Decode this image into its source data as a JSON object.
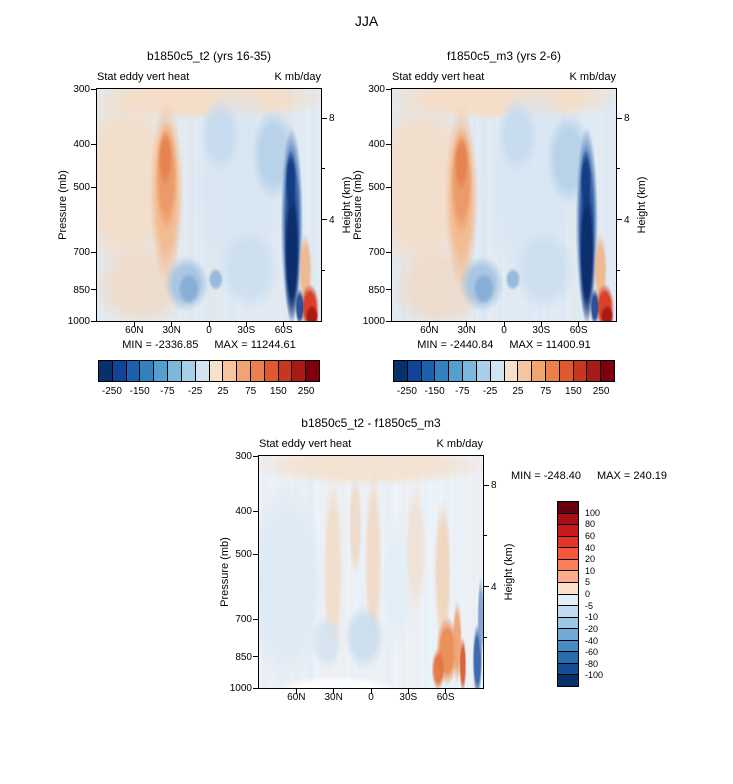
{
  "main_title": "JJA",
  "chart_data": [
    {
      "type": "heatmap",
      "title": "b1850c5_t2 (yrs 16-35)",
      "field_label": "Stat eddy vert heat",
      "units": "K mb/day",
      "min_label": "MIN = -2336.85",
      "max_label": "MAX = 11244.61",
      "pressure_axis": {
        "label": "Pressure (mb)",
        "ticks": [
          300,
          400,
          500,
          700,
          850,
          1000
        ]
      },
      "height_axis": {
        "label": "Height (km)",
        "ticks": [
          8,
          4
        ],
        "minor": [
          6,
          2
        ]
      },
      "lat_ticks": [
        "60N",
        "30N",
        "0",
        "30S",
        "60S"
      ],
      "colorbar": {
        "orientation": "horizontal",
        "labels": [
          "-250",
          "-150",
          "-75",
          "-25",
          "25",
          "75",
          "150",
          "250"
        ],
        "colors": [
          "#08306b",
          "#0f4499",
          "#1c60ae",
          "#3381bf",
          "#539fce",
          "#7db8dc",
          "#a8cfe8",
          "#d2e3f0",
          "#f8e0cb",
          "#f6c49e",
          "#f2a372",
          "#ec7f4c",
          "#e0582f",
          "#c93620",
          "#a81a17",
          "#7f000d"
        ]
      },
      "field": {
        "base": "#e2ecf6",
        "streak_warm": "#f3cda8",
        "streak_cool": "#bcd4e9",
        "seed": 1,
        "features": [
          {
            "x": 0.5,
            "y": 0.04,
            "rx": 0.55,
            "ry": 0.1,
            "c": "#f6dcc4",
            "a": 0.9
          },
          {
            "x": 0.14,
            "y": 0.4,
            "rx": 0.26,
            "ry": 0.42,
            "c": "#f5dcc5",
            "a": 0.85
          },
          {
            "x": 0.2,
            "y": 0.85,
            "rx": 0.22,
            "ry": 0.18,
            "c": "#f2d7bf",
            "a": 0.7
          },
          {
            "x": 0.31,
            "y": 0.45,
            "rx": 0.075,
            "ry": 0.4,
            "c": "#f3bb90",
            "a": 0.95
          },
          {
            "x": 0.31,
            "y": 0.38,
            "rx": 0.05,
            "ry": 0.24,
            "c": "#ec9868",
            "a": 0.95
          },
          {
            "x": 0.305,
            "y": 0.3,
            "rx": 0.032,
            "ry": 0.12,
            "c": "#e4824f",
            "a": 0.9
          },
          {
            "x": 0.63,
            "y": 0.42,
            "rx": 0.22,
            "ry": 0.46,
            "c": "#d8e6f3",
            "a": 0.9
          },
          {
            "x": 0.55,
            "y": 0.2,
            "rx": 0.09,
            "ry": 0.16,
            "c": "#c5daee",
            "a": 0.85
          },
          {
            "x": 0.79,
            "y": 0.28,
            "rx": 0.1,
            "ry": 0.2,
            "c": "#b2cee7",
            "a": 0.85
          },
          {
            "x": 0.68,
            "y": 0.78,
            "rx": 0.14,
            "ry": 0.18,
            "c": "#cadeef",
            "a": 0.8
          },
          {
            "x": 0.4,
            "y": 0.84,
            "rx": 0.1,
            "ry": 0.12,
            "c": "#a3c3e2",
            "a": 0.9
          },
          {
            "x": 0.41,
            "y": 0.86,
            "rx": 0.05,
            "ry": 0.07,
            "c": "#82abd5",
            "a": 0.9
          },
          {
            "x": 0.53,
            "y": 0.82,
            "rx": 0.035,
            "ry": 0.05,
            "c": "#8fb5da",
            "a": 0.9
          },
          {
            "x": 0.87,
            "y": 0.58,
            "rx": 0.05,
            "ry": 0.42,
            "c": "#2a5aa5",
            "a": 0.9
          },
          {
            "x": 0.87,
            "y": 0.7,
            "rx": 0.035,
            "ry": 0.32,
            "c": "#0c2d6e",
            "a": 1
          },
          {
            "x": 0.865,
            "y": 0.4,
            "rx": 0.025,
            "ry": 0.14,
            "c": "#123a82",
            "a": 0.9
          },
          {
            "x": 0.93,
            "y": 0.78,
            "rx": 0.03,
            "ry": 0.16,
            "c": "#f0b183",
            "a": 0.85
          },
          {
            "x": 0.95,
            "y": 0.94,
            "rx": 0.042,
            "ry": 0.1,
            "c": "#d8402a",
            "a": 1
          },
          {
            "x": 0.96,
            "y": 0.98,
            "rx": 0.03,
            "ry": 0.05,
            "c": "#a81a12",
            "a": 1
          },
          {
            "x": 0.905,
            "y": 0.94,
            "rx": 0.02,
            "ry": 0.08,
            "c": "#1a3f8c",
            "a": 0.9
          }
        ]
      }
    },
    {
      "type": "heatmap",
      "title": "f1850c5_m3 (yrs 2-6)",
      "field_label": "Stat eddy vert heat",
      "units": "K mb/day",
      "min_label": "MIN = -2440.84",
      "max_label": "MAX = 11400.91",
      "pressure_axis": {
        "label": "Pressure (mb)",
        "ticks": [
          300,
          400,
          500,
          700,
          850,
          1000
        ]
      },
      "height_axis": {
        "label": "Height (km)",
        "ticks": [
          8,
          4
        ],
        "minor": [
          6,
          2
        ]
      },
      "lat_ticks": [
        "60N",
        "30N",
        "0",
        "30S",
        "60S"
      ],
      "colorbar": {
        "orientation": "horizontal",
        "labels": [
          "-250",
          "-150",
          "-75",
          "-25",
          "25",
          "75",
          "150",
          "250"
        ],
        "colors": [
          "#08306b",
          "#0f4499",
          "#1c60ae",
          "#3381bf",
          "#539fce",
          "#7db8dc",
          "#a8cfe8",
          "#d2e3f0",
          "#f8e0cb",
          "#f6c49e",
          "#f2a372",
          "#ec7f4c",
          "#e0582f",
          "#c93620",
          "#a81a17",
          "#7f000d"
        ]
      },
      "field": {
        "base": "#e2ecf6",
        "streak_warm": "#f3cda8",
        "streak_cool": "#bcd4e9",
        "seed": 2,
        "features": [
          {
            "x": 0.5,
            "y": 0.04,
            "rx": 0.55,
            "ry": 0.1,
            "c": "#f6dcc4",
            "a": 0.9
          },
          {
            "x": 0.14,
            "y": 0.42,
            "rx": 0.26,
            "ry": 0.42,
            "c": "#f5dcc5",
            "a": 0.85
          },
          {
            "x": 0.21,
            "y": 0.86,
            "rx": 0.22,
            "ry": 0.18,
            "c": "#f2d7bf",
            "a": 0.7
          },
          {
            "x": 0.31,
            "y": 0.47,
            "rx": 0.075,
            "ry": 0.4,
            "c": "#f3bb90",
            "a": 0.95
          },
          {
            "x": 0.31,
            "y": 0.4,
            "rx": 0.05,
            "ry": 0.24,
            "c": "#ec9868",
            "a": 0.95
          },
          {
            "x": 0.31,
            "y": 0.32,
            "rx": 0.032,
            "ry": 0.12,
            "c": "#e4824f",
            "a": 0.9
          },
          {
            "x": 0.63,
            "y": 0.42,
            "rx": 0.22,
            "ry": 0.46,
            "c": "#d8e6f3",
            "a": 0.9
          },
          {
            "x": 0.56,
            "y": 0.2,
            "rx": 0.09,
            "ry": 0.16,
            "c": "#c5daee",
            "a": 0.85
          },
          {
            "x": 0.79,
            "y": 0.3,
            "rx": 0.1,
            "ry": 0.2,
            "c": "#b2cee7",
            "a": 0.85
          },
          {
            "x": 0.68,
            "y": 0.78,
            "rx": 0.14,
            "ry": 0.18,
            "c": "#cadeef",
            "a": 0.8
          },
          {
            "x": 0.4,
            "y": 0.84,
            "rx": 0.1,
            "ry": 0.12,
            "c": "#a3c3e2",
            "a": 0.9
          },
          {
            "x": 0.41,
            "y": 0.86,
            "rx": 0.05,
            "ry": 0.07,
            "c": "#82abd5",
            "a": 0.9
          },
          {
            "x": 0.54,
            "y": 0.82,
            "rx": 0.035,
            "ry": 0.05,
            "c": "#8fb5da",
            "a": 0.9
          },
          {
            "x": 0.87,
            "y": 0.58,
            "rx": 0.05,
            "ry": 0.42,
            "c": "#2a5aa5",
            "a": 0.9
          },
          {
            "x": 0.87,
            "y": 0.7,
            "rx": 0.035,
            "ry": 0.32,
            "c": "#0c2d6e",
            "a": 1
          },
          {
            "x": 0.865,
            "y": 0.4,
            "rx": 0.025,
            "ry": 0.14,
            "c": "#123a82",
            "a": 0.9
          },
          {
            "x": 0.93,
            "y": 0.78,
            "rx": 0.03,
            "ry": 0.16,
            "c": "#f0b183",
            "a": 0.85
          },
          {
            "x": 0.95,
            "y": 0.94,
            "rx": 0.042,
            "ry": 0.1,
            "c": "#d8402a",
            "a": 1
          },
          {
            "x": 0.96,
            "y": 0.98,
            "rx": 0.03,
            "ry": 0.05,
            "c": "#a81a12",
            "a": 1
          },
          {
            "x": 0.905,
            "y": 0.94,
            "rx": 0.02,
            "ry": 0.08,
            "c": "#1a3f8c",
            "a": 0.9
          }
        ]
      }
    },
    {
      "type": "heatmap",
      "title": "b1850c5_t2 - f1850c5_m3",
      "field_label": "Stat eddy vert heat",
      "units": "K mb/day",
      "min_label": "MIN = -248.40",
      "max_label": "MAX = 240.19",
      "pressure_axis": {
        "label": "Pressure (mb)",
        "ticks": [
          300,
          400,
          500,
          700,
          850,
          1000
        ]
      },
      "height_axis": {
        "label": "Height (km)",
        "ticks": [
          8,
          4
        ],
        "minor": [
          6,
          2
        ]
      },
      "lat_ticks": [
        "60N",
        "30N",
        "0",
        "30S",
        "60S"
      ],
      "colorbar": {
        "orientation": "vertical",
        "labels": [
          "100",
          "80",
          "60",
          "40",
          "20",
          "10",
          "5",
          "0",
          "-5",
          "-10",
          "-20",
          "-40",
          "-60",
          "-80",
          "-100"
        ],
        "colors": [
          "#67000d",
          "#a50f15",
          "#cb181d",
          "#e63327",
          "#f4573c",
          "#fb7e5a",
          "#fcab8c",
          "#fde0cc",
          "#e4eef7",
          "#c3dbef",
          "#9cc6e3",
          "#70a9d3",
          "#468bc1",
          "#2a6bae",
          "#154d95",
          "#08306b"
        ]
      },
      "field": {
        "base": "#edf3fa",
        "streak_warm": "#f2cfae",
        "streak_cool": "#c6daed",
        "seed": 3,
        "features": [
          {
            "x": 0.5,
            "y": 0.04,
            "rx": 0.55,
            "ry": 0.09,
            "c": "#f5e0cb",
            "a": 0.8
          },
          {
            "x": 0.12,
            "y": 0.55,
            "rx": 0.18,
            "ry": 0.45,
            "c": "#dce9f4",
            "a": 0.9
          },
          {
            "x": 0.33,
            "y": 0.5,
            "rx": 0.045,
            "ry": 0.42,
            "c": "#f3d6bb",
            "a": 0.7
          },
          {
            "x": 0.43,
            "y": 0.3,
            "rx": 0.03,
            "ry": 0.22,
            "c": "#f0cdb0",
            "a": 0.6
          },
          {
            "x": 0.51,
            "y": 0.45,
            "rx": 0.04,
            "ry": 0.4,
            "c": "#f2d4ba",
            "a": 0.7
          },
          {
            "x": 0.47,
            "y": 0.78,
            "rx": 0.09,
            "ry": 0.14,
            "c": "#c8dcee",
            "a": 0.85
          },
          {
            "x": 0.3,
            "y": 0.8,
            "rx": 0.07,
            "ry": 0.12,
            "c": "#d2e3f1",
            "a": 0.8
          },
          {
            "x": 0.62,
            "y": 0.55,
            "rx": 0.07,
            "ry": 0.3,
            "c": "#e2eef7",
            "a": 0.8
          },
          {
            "x": 0.7,
            "y": 0.4,
            "rx": 0.05,
            "ry": 0.28,
            "c": "#f2dac4",
            "a": 0.6
          },
          {
            "x": 0.82,
            "y": 0.5,
            "rx": 0.04,
            "ry": 0.32,
            "c": "#f1cba8",
            "a": 0.7
          },
          {
            "x": 0.84,
            "y": 0.84,
            "rx": 0.05,
            "ry": 0.15,
            "c": "#ea8b55",
            "a": 0.95
          },
          {
            "x": 0.8,
            "y": 0.92,
            "rx": 0.03,
            "ry": 0.09,
            "c": "#e2703a",
            "a": 0.9
          },
          {
            "x": 0.885,
            "y": 0.8,
            "rx": 0.022,
            "ry": 0.18,
            "c": "#f0a06c",
            "a": 0.9
          },
          {
            "x": 0.91,
            "y": 0.9,
            "rx": 0.016,
            "ry": 0.12,
            "c": "#d4572b",
            "a": 0.9
          },
          {
            "x": 0.975,
            "y": 0.88,
            "rx": 0.022,
            "ry": 0.16,
            "c": "#2a5aa5",
            "a": 0.9
          },
          {
            "x": 0.99,
            "y": 0.7,
            "rx": 0.015,
            "ry": 0.18,
            "c": "#6f94c4",
            "a": 0.8
          },
          {
            "x": 0.35,
            "y": 1.0,
            "rx": 0.28,
            "ry": 0.05,
            "c": "#ffffff",
            "a": 0.85
          }
        ]
      }
    }
  ]
}
